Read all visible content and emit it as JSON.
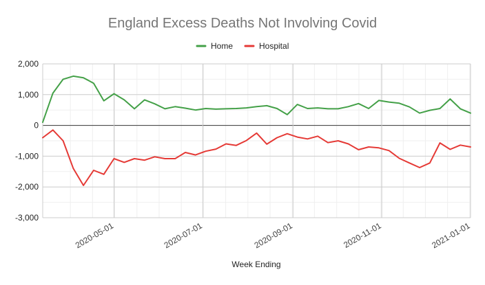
{
  "chart_data": {
    "type": "line",
    "title": "England Excess Deaths Not Involving Covid",
    "xlabel": "Week Ending",
    "ylabel": "",
    "ylim": [
      -3000,
      2000
    ],
    "y_ticks": [
      2000,
      1000,
      0,
      -1000,
      -2000,
      -3000
    ],
    "y_tick_labels": [
      "2,000",
      "1,000",
      "0",
      "-1,000",
      "-2,000",
      "-3,000"
    ],
    "x_range": [
      "2020-03-13",
      "2021-01-01"
    ],
    "x_ticks": [
      {
        "label": "2020-05-01",
        "date": "2020-05-01"
      },
      {
        "label": "2020-07-01",
        "date": "2020-07-01"
      },
      {
        "label": "2020-09-01",
        "date": "2020-09-01"
      },
      {
        "label": "2020-11-01",
        "date": "2020-11-01"
      },
      {
        "label": "2021-01-01",
        "date": "2021-01-01"
      }
    ],
    "legend_position": "top-center",
    "x": [
      "2020-03-13",
      "2020-03-20",
      "2020-03-27",
      "2020-04-03",
      "2020-04-10",
      "2020-04-17",
      "2020-04-24",
      "2020-05-01",
      "2020-05-08",
      "2020-05-15",
      "2020-05-22",
      "2020-05-29",
      "2020-06-05",
      "2020-06-12",
      "2020-06-19",
      "2020-06-26",
      "2020-07-03",
      "2020-07-10",
      "2020-07-17",
      "2020-07-24",
      "2020-07-31",
      "2020-08-07",
      "2020-08-14",
      "2020-08-21",
      "2020-08-28",
      "2020-09-04",
      "2020-09-11",
      "2020-09-18",
      "2020-09-25",
      "2020-10-02",
      "2020-10-09",
      "2020-10-16",
      "2020-10-23",
      "2020-10-30",
      "2020-11-06",
      "2020-11-13",
      "2020-11-20",
      "2020-11-27",
      "2020-12-04",
      "2020-12-11",
      "2020-12-18",
      "2020-12-25",
      "2021-01-01"
    ],
    "series": [
      {
        "name": "Home",
        "color": "#43a047",
        "values": [
          100,
          1050,
          1500,
          1600,
          1550,
          1370,
          800,
          1030,
          830,
          540,
          830,
          700,
          540,
          610,
          560,
          500,
          550,
          530,
          540,
          550,
          570,
          610,
          640,
          550,
          350,
          680,
          550,
          570,
          540,
          540,
          610,
          710,
          550,
          810,
          760,
          720,
          600,
          400,
          490,
          550,
          860,
          540,
          400
        ]
      },
      {
        "name": "Hospital",
        "color": "#e53935",
        "values": [
          -400,
          -150,
          -500,
          -1400,
          -1950,
          -1460,
          -1590,
          -1080,
          -1200,
          -1080,
          -1130,
          -1020,
          -1080,
          -1080,
          -880,
          -960,
          -840,
          -770,
          -600,
          -650,
          -490,
          -250,
          -610,
          -400,
          -270,
          -380,
          -440,
          -350,
          -560,
          -500,
          -600,
          -790,
          -700,
          -730,
          -820,
          -1070,
          -1220,
          -1370,
          -1220,
          -570,
          -780,
          -640,
          -700
        ]
      }
    ]
  }
}
